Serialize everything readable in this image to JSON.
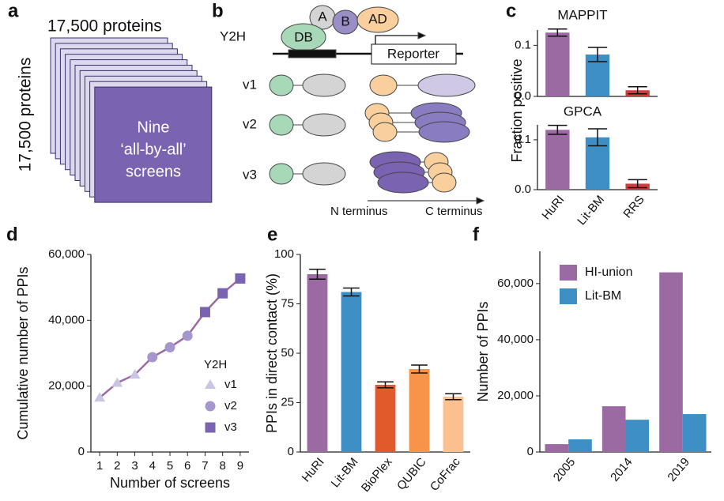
{
  "panel_labels": [
    "a",
    "b",
    "c",
    "d",
    "e",
    "f"
  ],
  "diagram_a": {
    "top_label": "17,500 proteins",
    "side_label": "17,500 proteins",
    "front_text": [
      "Nine",
      "‘all-by-all’",
      "screens"
    ]
  },
  "diagram_b": {
    "assay": "Y2H",
    "proteins": [
      "A",
      "B",
      "AD",
      "DB"
    ],
    "reporter": "Reporter",
    "versions": [
      "v1",
      "v2",
      "v3"
    ],
    "n_terminus": "N terminus",
    "c_terminus": "C terminus"
  },
  "chart_data": [
    {
      "type": "bar",
      "title": "MAPPIT",
      "ylabel": "Fraction positive",
      "values": [
        0.125,
        0.082,
        0.012
      ],
      "errors": [
        0.007,
        0.014,
        0.007
      ],
      "colors": [
        "#9b6aa3",
        "#3d8fc4",
        "#d43a3a"
      ],
      "ylim": [
        0,
        0.13
      ],
      "yticks": [
        {
          "value": 0,
          "label": "0.0"
        },
        0.1
      ]
    },
    {
      "type": "bar",
      "title": "GPCA",
      "categories": [
        "HuRI",
        "Lit-BM",
        "RRS"
      ],
      "values": [
        0.12,
        0.105,
        0.012
      ],
      "errors": [
        0.009,
        0.017,
        0.008
      ],
      "colors": [
        "#9b6aa3",
        "#3d8fc4",
        "#d43a3a"
      ],
      "ylim": [
        0,
        0.13
      ],
      "yticks": [
        {
          "value": 0,
          "label": "0.0"
        },
        0.1
      ]
    },
    {
      "type": "line",
      "xlabel": "Number of screens",
      "ylabel": "Cumulative number of PPIs",
      "legend_title": "Y2H",
      "line_color": "#9b6aa3",
      "series": [
        {
          "name": "v1",
          "marker": "triangle",
          "color": "#c9c5e2",
          "x": [
            1,
            2,
            3
          ],
          "values": [
            16500,
            21000,
            23500
          ]
        },
        {
          "name": "v2",
          "marker": "circle",
          "color": "#a596ce",
          "x": [
            4,
            5,
            6
          ],
          "values": [
            28800,
            31800,
            35300
          ]
        },
        {
          "name": "v3",
          "marker": "square",
          "color": "#7a63b1",
          "x": [
            7,
            8,
            9
          ],
          "values": [
            42500,
            48200,
            52700
          ]
        }
      ],
      "xlim": [
        0.5,
        9.5
      ],
      "xticks": [
        1,
        2,
        3,
        4,
        5,
        6,
        7,
        8,
        9
      ],
      "ylim": [
        0,
        60000
      ],
      "yticks": [
        0,
        {
          "value": 20000,
          "label": "20,000"
        },
        {
          "value": 40000,
          "label": "40,000"
        },
        {
          "value": 60000,
          "label": "60,000"
        }
      ]
    },
    {
      "type": "bar",
      "ylabel": "PPIs in direct contact (%)",
      "categories": [
        "HuRI",
        "Lit-BM",
        "BioPlex",
        "QUBIC",
        "CoFrac"
      ],
      "values": [
        90,
        81,
        34,
        42,
        28
      ],
      "errors": [
        2.5,
        2,
        1.5,
        2,
        1.5
      ],
      "colors": [
        "#9b6aa3",
        "#3d8fc4",
        "#e05a2b",
        "#f7944a",
        "#fbc08f"
      ],
      "ylim": [
        0,
        100
      ],
      "yticks": [
        0,
        25,
        50,
        75,
        100
      ]
    },
    {
      "type": "bar",
      "ylabel": "Number of PPIs",
      "categories": [
        "2005",
        "2014",
        "2019"
      ],
      "series": [
        {
          "name": "HI-union",
          "color": "#9b6aa3",
          "values": [
            2800,
            16300,
            64000
          ]
        },
        {
          "name": "Lit-BM",
          "color": "#3d8fc4",
          "values": [
            4500,
            11500,
            13500
          ]
        }
      ],
      "ylim": [
        0,
        71500
      ],
      "yticks": [
        0,
        {
          "value": 20000,
          "label": "20,000"
        },
        {
          "value": 40000,
          "label": "40,000"
        },
        {
          "value": 60000,
          "label": "60,000"
        }
      ],
      "legend": "upper left"
    }
  ]
}
